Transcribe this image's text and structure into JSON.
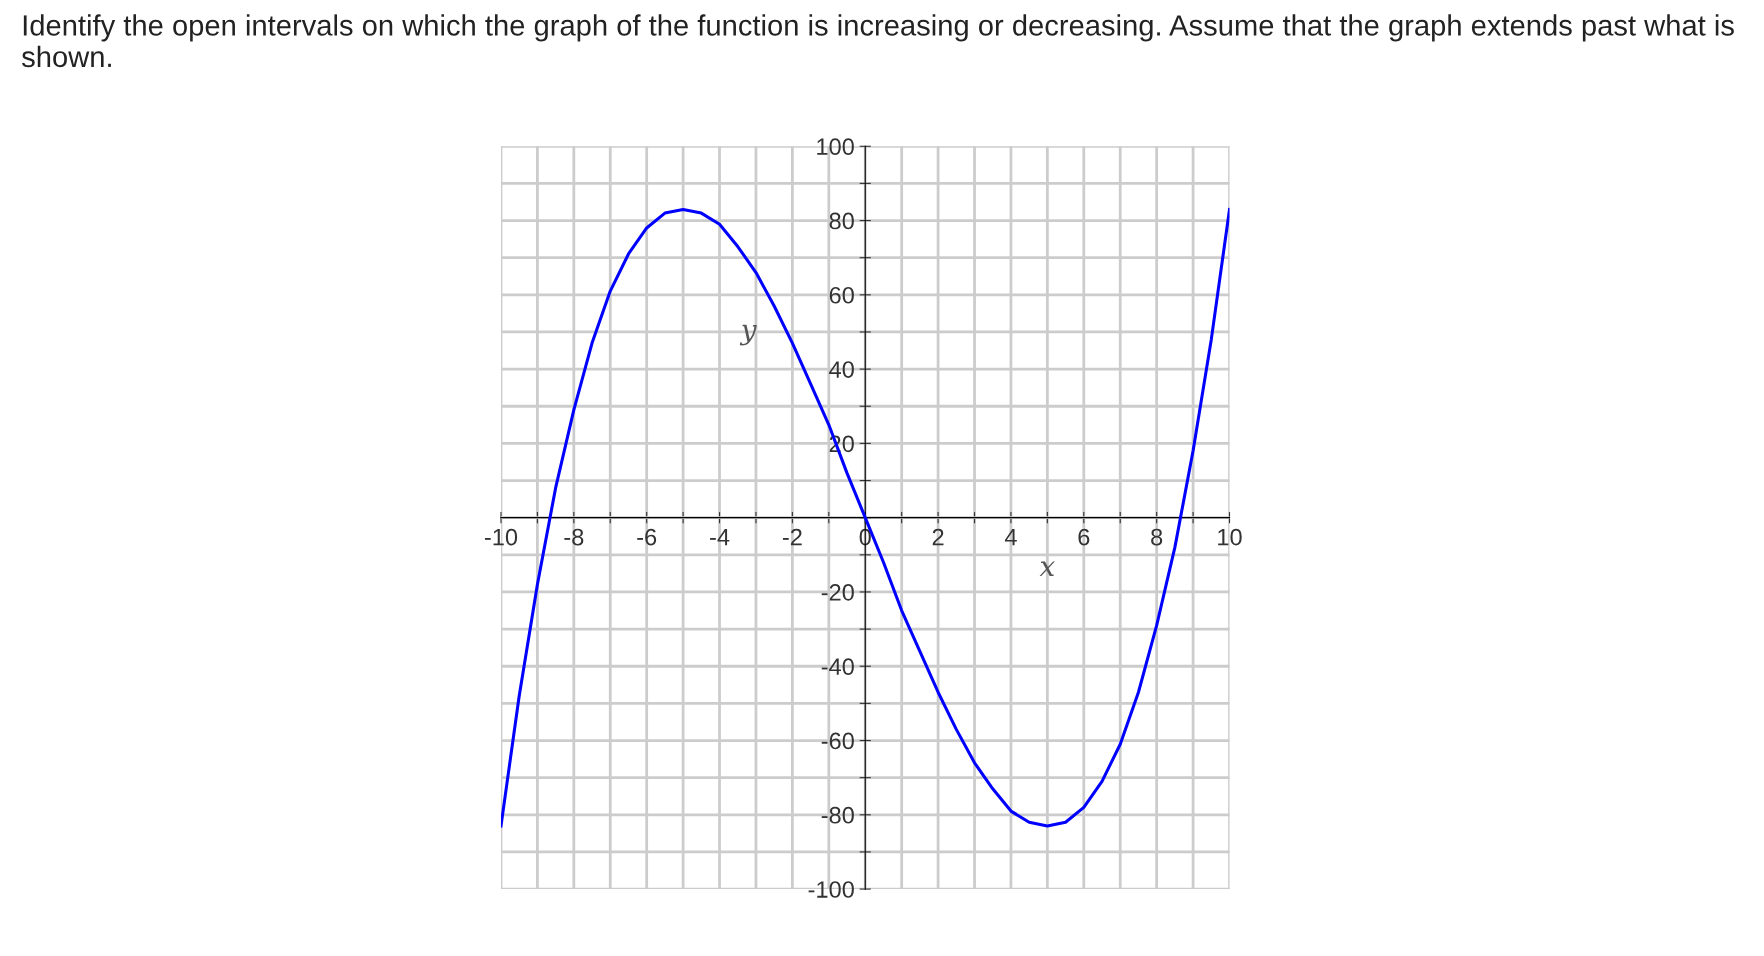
{
  "chart_data": {
    "type": "line",
    "title": "Identify the open intervals on which the graph of the function is increasing or decreasing. Assume that the graph extends past what is shown.",
    "xlabel": "x",
    "ylabel": "y",
    "x": [
      -10,
      -9.5,
      -9,
      -8.5,
      -8,
      -7.5,
      -7,
      -6.5,
      -6,
      -5.5,
      -5,
      -4.5,
      -4,
      -3.5,
      -3,
      -2.5,
      -2,
      -1.5,
      -1,
      -0.5,
      0,
      0.5,
      1,
      1.5,
      2,
      2.5,
      3,
      3.5,
      4,
      4.5,
      5,
      5.5,
      6,
      6.5,
      7,
      7.5,
      8,
      8.5,
      9,
      9.5,
      10
    ],
    "series": [
      {
        "color": "#0000ff",
        "values": [
          -83,
          -48,
          -18,
          8,
          29,
          47,
          61,
          71,
          78,
          82,
          83,
          82,
          79,
          73,
          66,
          57,
          47,
          36,
          25,
          12,
          0,
          -12,
          -25,
          -36,
          -47,
          -57,
          -66,
          -73,
          -79,
          -82,
          -83,
          -82,
          -78,
          -71,
          -61,
          -47,
          -29,
          -8,
          18,
          48,
          83
        ]
      }
    ],
    "xlim": [
      -10,
      10
    ],
    "ylim": [
      -100,
      100
    ],
    "xticks": [
      -10,
      {
        "value": -9,
        "label": null
      },
      -8,
      {
        "value": -7,
        "label": null
      },
      -6,
      {
        "value": -5,
        "label": null
      },
      -4,
      {
        "value": -3,
        "label": null
      },
      -2,
      {
        "value": -1,
        "label": null
      },
      0,
      {
        "value": 1,
        "label": null
      },
      2,
      {
        "value": 3,
        "label": null
      },
      4,
      {
        "value": 5,
        "label": null
      },
      6,
      {
        "value": 7,
        "label": null
      },
      8,
      {
        "value": 9,
        "label": null
      },
      10
    ],
    "yticks": [
      -100,
      {
        "value": -90,
        "label": null
      },
      -80,
      {
        "value": -70,
        "label": null
      },
      -60,
      {
        "value": -50,
        "label": null
      },
      -40,
      {
        "value": -30,
        "label": null
      },
      -20,
      {
        "value": -10,
        "label": null
      },
      {
        "value": 0,
        "label": null
      },
      {
        "value": 10,
        "label": null
      },
      20,
      {
        "value": 30,
        "label": null
      },
      40,
      {
        "value": 50,
        "label": null
      },
      60,
      {
        "value": 70,
        "label": null
      },
      80,
      {
        "value": 90,
        "label": null
      },
      100
    ],
    "grid": true,
    "line_style": "solid",
    "marker": "none"
  }
}
